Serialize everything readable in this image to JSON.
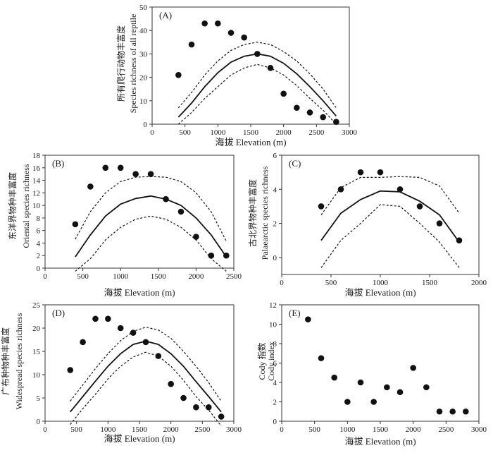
{
  "chart_data": [
    {
      "type": "scatter",
      "panel": "(A)",
      "xlabel": "海拔 Elevation (m)",
      "ylabel_cn": "所有爬行动物丰富度",
      "ylabel_en": "Species richness of all reptile",
      "xlim": [
        0,
        3000
      ],
      "ylim": [
        0,
        50
      ],
      "xticks": [
        0,
        500,
        1000,
        1500,
        2000,
        2500,
        3000
      ],
      "yticks": [
        0,
        10,
        20,
        30,
        40,
        50
      ],
      "points": {
        "x": [
          400,
          600,
          800,
          1000,
          1200,
          1400,
          1600,
          1800,
          2000,
          2200,
          2400,
          2600,
          2800
        ],
        "y": [
          21,
          34,
          43,
          43,
          39,
          37,
          30,
          24,
          13,
          7,
          5,
          3,
          1
        ]
      },
      "fit": {
        "x": [
          400,
          600,
          800,
          1000,
          1200,
          1400,
          1600,
          1800,
          2000,
          2200,
          2400,
          2600,
          2800
        ],
        "y": [
          3,
          9,
          16,
          22,
          26.5,
          29,
          30,
          29,
          26,
          21.5,
          16,
          10,
          3.5
        ]
      },
      "upper": {
        "x": [
          400,
          600,
          800,
          1000,
          1200,
          1400,
          1600,
          1800,
          2000,
          2200,
          2400,
          2600,
          2800
        ],
        "y": [
          7,
          13.5,
          21,
          27,
          31.5,
          34,
          35,
          34,
          31,
          27,
          21.5,
          15,
          7
        ]
      },
      "lower": {
        "x": [
          400,
          600,
          800,
          1000,
          1200,
          1400,
          1600,
          1800,
          2000,
          2200,
          2400,
          2600,
          2800
        ],
        "y": [
          0,
          5,
          11,
          16,
          21,
          24,
          25.5,
          24,
          21,
          16.5,
          11,
          6,
          0
        ]
      }
    },
    {
      "type": "scatter",
      "panel": "(B)",
      "xlabel": "海拔 Elevation (m)",
      "ylabel_cn": "东洋界物种丰富度",
      "ylabel_en": "Oriental species richness",
      "xlim": [
        0,
        2500
      ],
      "ylim": [
        0,
        18
      ],
      "xticks": [
        0,
        500,
        1000,
        1500,
        2000,
        2500
      ],
      "yticks": [
        0,
        2,
        4,
        6,
        8,
        10,
        12,
        14,
        16,
        18
      ],
      "points": {
        "x": [
          400,
          600,
          800,
          1000,
          1200,
          1400,
          1600,
          1800,
          2000,
          2200,
          2400
        ],
        "y": [
          7,
          13,
          16,
          16,
          15,
          15,
          11,
          9,
          5,
          2,
          2
        ]
      },
      "fit": {
        "x": [
          400,
          600,
          800,
          1000,
          1200,
          1400,
          1600,
          1800,
          2000,
          2200,
          2400
        ],
        "y": [
          1.8,
          5.3,
          8.3,
          10.2,
          11.1,
          11.5,
          11,
          10,
          8,
          5.3,
          1.8
        ]
      },
      "upper": {
        "x": [
          400,
          600,
          800,
          1000,
          1200,
          1400,
          1600,
          1800,
          2000,
          2200,
          2400
        ],
        "y": [
          4.6,
          9,
          12,
          13.8,
          14.5,
          14.6,
          14.5,
          13.8,
          12,
          9,
          4.3
        ]
      },
      "lower": {
        "x": [
          400,
          600,
          800,
          1000,
          1200,
          1400,
          1600,
          1800,
          2000,
          2200,
          2400
        ],
        "y": [
          -0.5,
          1.5,
          4.5,
          6.5,
          7.8,
          8.3,
          7.8,
          6.5,
          4.5,
          1.5,
          -0.5
        ]
      }
    },
    {
      "type": "scatter",
      "panel": "(C)",
      "xlabel": "海拔 Elevation (m)",
      "ylabel_cn": "古北界物种丰富度",
      "ylabel_en": "Palaearctic species richness",
      "xlim": [
        0,
        2000
      ],
      "ylim": [
        -1,
        6
      ],
      "xticks": [
        0,
        500,
        1000,
        1500,
        2000
      ],
      "yticks": [
        0,
        2,
        4,
        6
      ],
      "points": {
        "x": [
          400,
          600,
          800,
          1000,
          1200,
          1400,
          1600,
          1800
        ],
        "y": [
          3,
          4,
          5,
          5,
          4,
          3,
          2,
          1
        ]
      },
      "fit": {
        "x": [
          400,
          600,
          800,
          1000,
          1200,
          1400,
          1600,
          1800
        ],
        "y": [
          1,
          2.6,
          3.4,
          3.9,
          3.85,
          3.3,
          2.5,
          0.9
        ]
      },
      "upper": {
        "x": [
          400,
          600,
          800,
          1000,
          1200,
          1400,
          1600,
          1800
        ],
        "y": [
          2.5,
          4.1,
          4.7,
          4.7,
          4.75,
          4.7,
          4.2,
          2.6
        ]
      },
      "lower": {
        "x": [
          400,
          600,
          800,
          1000,
          1200,
          1400,
          1600,
          1800
        ],
        "y": [
          -0.6,
          1,
          2,
          3.1,
          3,
          2,
          0.9,
          -0.6
        ]
      }
    },
    {
      "type": "scatter",
      "panel": "(D)",
      "xlabel": "海拔  Elevation (m)",
      "ylabel_cn": "广布种物种丰富度",
      "ylabel_en": "Widespread species richness",
      "xlim": [
        0,
        3000
      ],
      "ylim": [
        0,
        25
      ],
      "xticks": [
        0,
        500,
        1000,
        1500,
        2000,
        2500,
        3000
      ],
      "yticks": [
        0,
        5,
        10,
        15,
        20,
        25
      ],
      "points": {
        "x": [
          400,
          600,
          800,
          1000,
          1200,
          1400,
          1600,
          1800,
          2000,
          2200,
          2400,
          2600,
          2800
        ],
        "y": [
          11,
          17,
          22,
          22,
          20,
          19,
          17,
          14,
          8,
          5,
          3,
          3,
          1
        ]
      },
      "fit": {
        "x": [
          400,
          600,
          800,
          1000,
          1200,
          1400,
          1600,
          1800,
          2000,
          2200,
          2400,
          2600,
          2800
        ],
        "y": [
          2,
          5.3,
          8.6,
          11.8,
          14.5,
          16.5,
          17.2,
          16.5,
          14.5,
          11.8,
          8.5,
          5.3,
          2
        ]
      },
      "upper": {
        "x": [
          400,
          600,
          800,
          1000,
          1200,
          1400,
          1600,
          1800,
          2000,
          2200,
          2400,
          2600,
          2800
        ],
        "y": [
          4.3,
          7.8,
          11.3,
          14.5,
          17.3,
          19.3,
          20.2,
          19.6,
          17.8,
          15,
          11.8,
          8.3,
          4.3
        ]
      },
      "lower": {
        "x": [
          400,
          600,
          800,
          1000,
          1200,
          1400,
          1600,
          1800,
          2000,
          2200,
          2400,
          2600,
          2800
        ],
        "y": [
          -0.7,
          2.7,
          5.8,
          9.1,
          11.8,
          13.8,
          14.8,
          14,
          11.8,
          8.8,
          5.3,
          2.4,
          -1
        ]
      }
    },
    {
      "type": "scatter",
      "panel": "(E)",
      "xlabel": "海拔  Elevation (m)",
      "ylabel_cn": "Cody 指数",
      "ylabel_en": "Cody index",
      "xlim": [
        0,
        3000
      ],
      "ylim": [
        0,
        12
      ],
      "xticks": [
        0,
        500,
        1000,
        1500,
        2000,
        2500,
        3000
      ],
      "yticks": [
        0,
        2,
        4,
        6,
        8,
        10,
        12
      ],
      "points": {
        "x": [
          400,
          600,
          800,
          1000,
          1200,
          1400,
          1600,
          1800,
          2000,
          2200,
          2400,
          2600,
          2800
        ],
        "y": [
          10.5,
          6.5,
          4.5,
          2,
          4,
          2,
          3.5,
          3,
          5.5,
          3.5,
          1,
          1,
          1
        ]
      }
    }
  ]
}
